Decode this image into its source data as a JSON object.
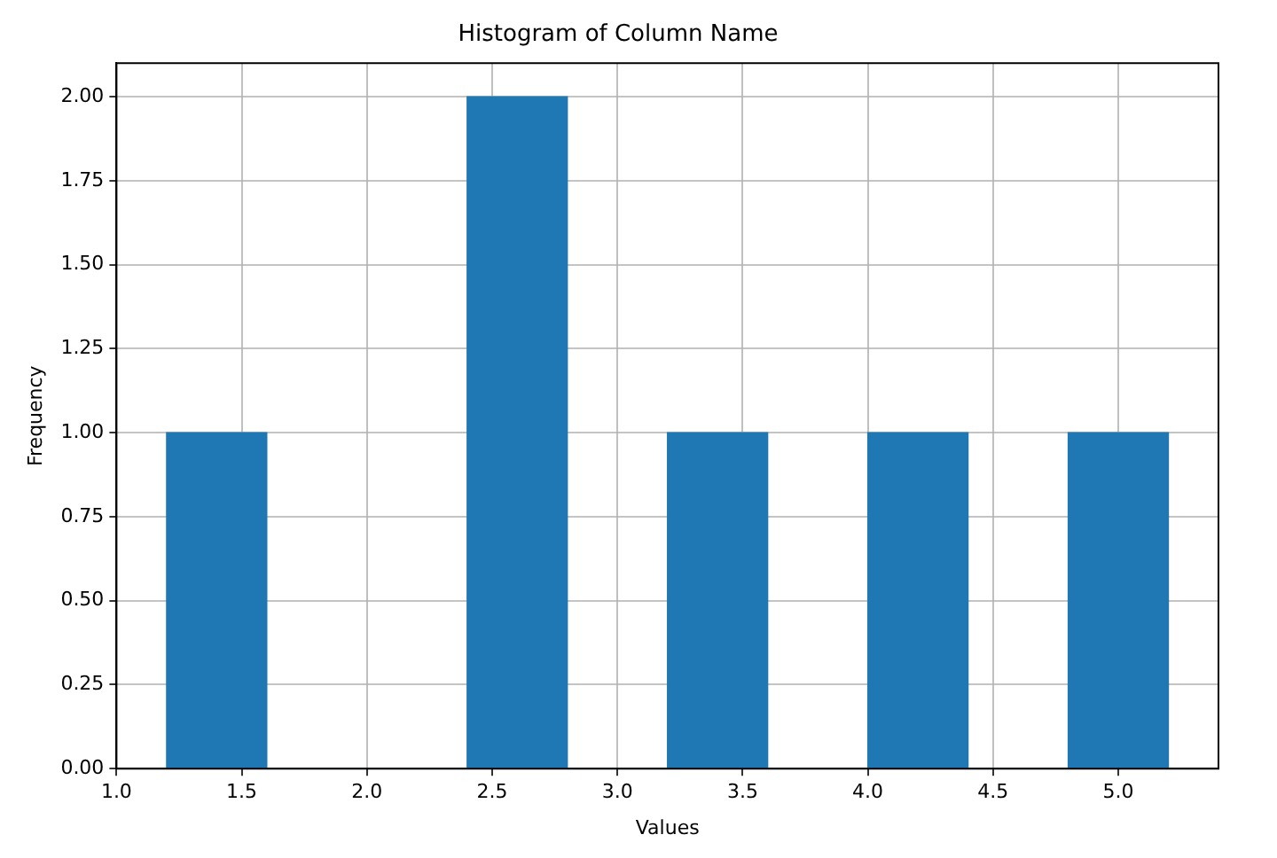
{
  "chart_data": {
    "type": "histogram",
    "title": "Histogram of Column Name",
    "xlabel": "Values",
    "ylabel": "Frequency",
    "bins": [
      1.2,
      1.6,
      2.0,
      2.4,
      2.8,
      3.2,
      3.6,
      4.0,
      4.4,
      4.8,
      5.2
    ],
    "values": [
      1,
      0,
      0,
      2,
      0,
      1,
      0,
      1,
      0,
      1
    ],
    "color": "#1f77b4",
    "xlim": [
      1.0,
      5.4
    ],
    "xticks": [
      {
        "value": 1.0,
        "label": "1.0"
      },
      {
        "value": 1.5,
        "label": "1.5"
      },
      {
        "value": 2.0,
        "label": "2.0"
      },
      {
        "value": 2.5,
        "label": "2.5"
      },
      {
        "value": 3.0,
        "label": "3.0"
      },
      {
        "value": 3.5,
        "label": "3.5"
      },
      {
        "value": 4.0,
        "label": "4.0"
      },
      {
        "value": 4.5,
        "label": "4.5"
      },
      {
        "value": 5.0,
        "label": "5.0"
      }
    ],
    "ylim": [
      0,
      2.1
    ],
    "yticks": [
      {
        "value": 0,
        "label": "0.00"
      },
      {
        "value": 0.25,
        "label": "0.25"
      },
      {
        "value": 0.5,
        "label": "0.50"
      },
      {
        "value": 0.75,
        "label": "0.75"
      },
      {
        "value": 1.0,
        "label": "1.00"
      },
      {
        "value": 1.25,
        "label": "1.25"
      },
      {
        "value": 1.5,
        "label": "1.50"
      },
      {
        "value": 1.75,
        "label": "1.75"
      },
      {
        "value": 2.0,
        "label": "2.00"
      }
    ],
    "grid": true
  }
}
